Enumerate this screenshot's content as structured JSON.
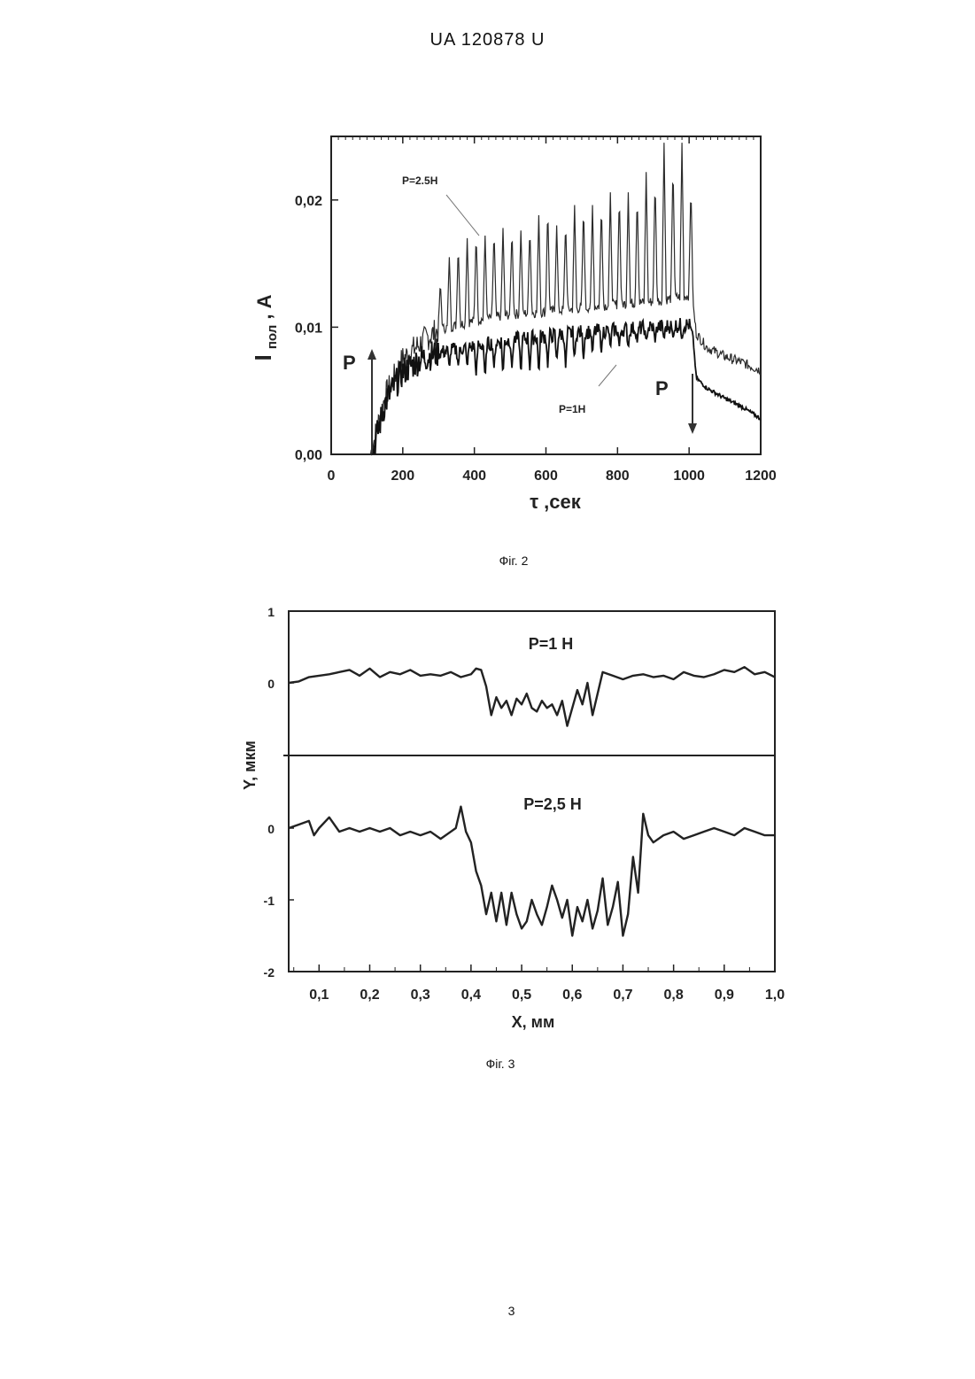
{
  "header": {
    "text": "UA   120878   U"
  },
  "page_number": "3",
  "figures": {
    "fig2_caption": "Фіг. 2",
    "fig3_caption": "Фіг. 3"
  },
  "chart_data": [
    {
      "type": "line",
      "xlabel": "τ ,сек",
      "ylabel": "I пол, A",
      "ylabel_main": "I",
      "ylabel_sub": "пол",
      "ylabel_unit": ", A",
      "xlim": [
        0,
        1200
      ],
      "ylim": [
        0,
        0.025
      ],
      "xticks": [
        "0",
        "200",
        "400",
        "600",
        "800",
        "1000",
        "1200"
      ],
      "xtick_values": [
        0,
        200,
        400,
        600,
        800,
        1000,
        1200
      ],
      "yticks": [
        "0,00",
        "0,01",
        "0,02"
      ],
      "ytick_values": [
        0,
        0.01,
        0.02
      ],
      "annotations": {
        "upper_series_label": "P=2.5H",
        "lower_series_label": "P=1H",
        "load_on_label": "P",
        "load_off_label": "P",
        "load_on_x": 112,
        "load_off_x": 1010
      },
      "series": [
        {
          "name": "P=2.5H",
          "baseline": [
            [
              110,
              0
            ],
            [
              150,
              0.0045
            ],
            [
              200,
              0.0075
            ],
            [
              260,
              0.009
            ],
            [
              300,
              0.0098
            ],
            [
              400,
              0.0105
            ],
            [
              500,
              0.011
            ],
            [
              600,
              0.0112
            ],
            [
              700,
              0.0115
            ],
            [
              800,
              0.0118
            ],
            [
              900,
              0.012
            ],
            [
              1000,
              0.0125
            ],
            [
              1010,
              0.012
            ],
            [
              1020,
              0.0095
            ],
            [
              1050,
              0.0084
            ],
            [
              1100,
              0.0077
            ],
            [
              1150,
              0.0072
            ],
            [
              1200,
              0.0066
            ]
          ],
          "peaks": [
            [
              305,
              0.0136
            ],
            [
              330,
              0.0155
            ],
            [
              355,
              0.0165
            ],
            [
              380,
              0.017
            ],
            [
              405,
              0.0175
            ],
            [
              430,
              0.0172
            ],
            [
              455,
              0.0177
            ],
            [
              480,
              0.0178
            ],
            [
              505,
              0.0178
            ],
            [
              530,
              0.0176
            ],
            [
              555,
              0.018
            ],
            [
              580,
              0.0188
            ],
            [
              605,
              0.0195
            ],
            [
              630,
              0.018
            ],
            [
              655,
              0.0184
            ],
            [
              680,
              0.0196
            ],
            [
              705,
              0.0196
            ],
            [
              730,
              0.0196
            ],
            [
              755,
              0.0198
            ],
            [
              780,
              0.0206
            ],
            [
              805,
              0.0205
            ],
            [
              830,
              0.0206
            ],
            [
              855,
              0.0205
            ],
            [
              880,
              0.0222
            ],
            [
              905,
              0.0218
            ],
            [
              930,
              0.0245
            ],
            [
              955,
              0.023
            ],
            [
              980,
              0.0245
            ],
            [
              1005,
              0.0213
            ]
          ]
        },
        {
          "name": "P=1H",
          "baseline": [
            [
              115,
              0
            ],
            [
              150,
              0.004
            ],
            [
              200,
              0.0065
            ],
            [
              250,
              0.0075
            ],
            [
              300,
              0.008
            ],
            [
              400,
              0.0085
            ],
            [
              500,
              0.009
            ],
            [
              600,
              0.0093
            ],
            [
              700,
              0.0096
            ],
            [
              800,
              0.0098
            ],
            [
              900,
              0.01
            ],
            [
              1000,
              0.0102
            ],
            [
              1010,
              0.0095
            ],
            [
              1020,
              0.006
            ],
            [
              1050,
              0.0052
            ],
            [
              1100,
              0.0044
            ],
            [
              1150,
              0.0037
            ],
            [
              1200,
              0.0028
            ]
          ],
          "dips": [
            [
              330,
              0.0068
            ],
            [
              355,
              0.007
            ],
            [
              380,
              0.0068
            ],
            [
              405,
              0.0062
            ],
            [
              430,
              0.0058
            ],
            [
              455,
              0.0068
            ],
            [
              480,
              0.0062
            ],
            [
              505,
              0.0068
            ],
            [
              530,
              0.0062
            ],
            [
              555,
              0.0066
            ],
            [
              580,
              0.0062
            ],
            [
              605,
              0.0068
            ],
            [
              630,
              0.0072
            ],
            [
              655,
              0.0068
            ],
            [
              680,
              0.0074
            ],
            [
              705,
              0.0075
            ],
            [
              730,
              0.0078
            ],
            [
              755,
              0.008
            ],
            [
              780,
              0.0083
            ],
            [
              805,
              0.0085
            ],
            [
              830,
              0.0083
            ],
            [
              855,
              0.0088
            ],
            [
              880,
              0.0088
            ],
            [
              905,
              0.0088
            ],
            [
              930,
              0.009
            ],
            [
              955,
              0.0092
            ],
            [
              980,
              0.009
            ]
          ]
        }
      ]
    },
    {
      "type": "line",
      "xlabel": "X, мм",
      "ylabel": "Y, мкм",
      "xlim": [
        0.04,
        1.0
      ],
      "xticks": [
        "0,1",
        "0,2",
        "0,3",
        "0,4",
        "0,5",
        "0,6",
        "0,7",
        "0,8",
        "0,9",
        "1,0"
      ],
      "xtick_values": [
        0.1,
        0.2,
        0.3,
        0.4,
        0.5,
        0.6,
        0.7,
        0.8,
        0.9,
        1.0
      ],
      "panels": [
        {
          "name": "P=1 H",
          "ylim": [
            -1,
            1
          ],
          "yticks": [
            "1",
            "0"
          ],
          "ytick_values": [
            1,
            0
          ],
          "x": [
            0.04,
            0.06,
            0.08,
            0.1,
            0.12,
            0.14,
            0.16,
            0.18,
            0.2,
            0.22,
            0.24,
            0.26,
            0.28,
            0.3,
            0.32,
            0.34,
            0.36,
            0.38,
            0.4,
            0.41,
            0.42,
            0.43,
            0.44,
            0.45,
            0.46,
            0.47,
            0.48,
            0.49,
            0.5,
            0.51,
            0.52,
            0.53,
            0.54,
            0.55,
            0.56,
            0.57,
            0.58,
            0.59,
            0.6,
            0.61,
            0.62,
            0.63,
            0.64,
            0.66,
            0.68,
            0.7,
            0.72,
            0.74,
            0.76,
            0.78,
            0.8,
            0.82,
            0.84,
            0.86,
            0.88,
            0.9,
            0.92,
            0.94,
            0.96,
            0.98,
            1.0
          ],
          "y": [
            0,
            0.02,
            0.08,
            0.1,
            0.12,
            0.15,
            0.18,
            0.1,
            0.2,
            0.08,
            0.15,
            0.12,
            0.18,
            0.1,
            0.12,
            0.1,
            0.15,
            0.08,
            0.12,
            0.2,
            0.18,
            -0.05,
            -0.45,
            -0.2,
            -0.35,
            -0.25,
            -0.45,
            -0.22,
            -0.3,
            -0.15,
            -0.35,
            -0.4,
            -0.25,
            -0.35,
            -0.3,
            -0.45,
            -0.25,
            -0.6,
            -0.35,
            -0.1,
            -0.3,
            0.0,
            -0.45,
            0.15,
            0.1,
            0.05,
            0.1,
            0.12,
            0.08,
            0.1,
            0.05,
            0.15,
            0.1,
            0.08,
            0.12,
            0.18,
            0.15,
            0.22,
            0.12,
            0.15,
            0.08
          ]
        },
        {
          "name": "P=2,5 H",
          "ylim": [
            -2,
            0.5
          ],
          "yticks": [
            "0",
            "-1",
            "-2"
          ],
          "ytick_values": [
            0,
            -1,
            -2
          ],
          "x": [
            0.04,
            0.06,
            0.08,
            0.09,
            0.1,
            0.12,
            0.14,
            0.16,
            0.18,
            0.2,
            0.22,
            0.24,
            0.26,
            0.28,
            0.3,
            0.32,
            0.34,
            0.36,
            0.37,
            0.38,
            0.39,
            0.4,
            0.41,
            0.42,
            0.43,
            0.44,
            0.45,
            0.46,
            0.47,
            0.48,
            0.49,
            0.5,
            0.51,
            0.52,
            0.53,
            0.54,
            0.55,
            0.56,
            0.57,
            0.58,
            0.59,
            0.6,
            0.61,
            0.62,
            0.63,
            0.64,
            0.65,
            0.66,
            0.67,
            0.68,
            0.69,
            0.7,
            0.71,
            0.72,
            0.73,
            0.74,
            0.75,
            0.76,
            0.78,
            0.8,
            0.82,
            0.84,
            0.86,
            0.88,
            0.9,
            0.92,
            0.94,
            0.96,
            0.98,
            1.0
          ],
          "y": [
            0,
            0.05,
            0.1,
            -0.1,
            0.0,
            0.15,
            -0.05,
            0.0,
            -0.05,
            0.0,
            -0.05,
            0.0,
            -0.1,
            -0.05,
            -0.1,
            -0.05,
            -0.15,
            -0.05,
            0.0,
            0.3,
            -0.05,
            -0.2,
            -0.6,
            -0.8,
            -1.2,
            -0.9,
            -1.3,
            -0.9,
            -1.35,
            -0.9,
            -1.2,
            -1.4,
            -1.3,
            -1.0,
            -1.2,
            -1.35,
            -1.1,
            -0.8,
            -1.0,
            -1.25,
            -1.0,
            -1.5,
            -1.1,
            -1.3,
            -1.0,
            -1.4,
            -1.15,
            -0.7,
            -1.35,
            -1.1,
            -0.75,
            -1.5,
            -1.2,
            -0.4,
            -0.9,
            0.2,
            -0.1,
            -0.2,
            -0.1,
            -0.05,
            -0.15,
            -0.1,
            -0.05,
            0.0,
            -0.05,
            -0.1,
            0.0,
            -0.05,
            -0.1,
            -0.1
          ]
        }
      ]
    }
  ]
}
